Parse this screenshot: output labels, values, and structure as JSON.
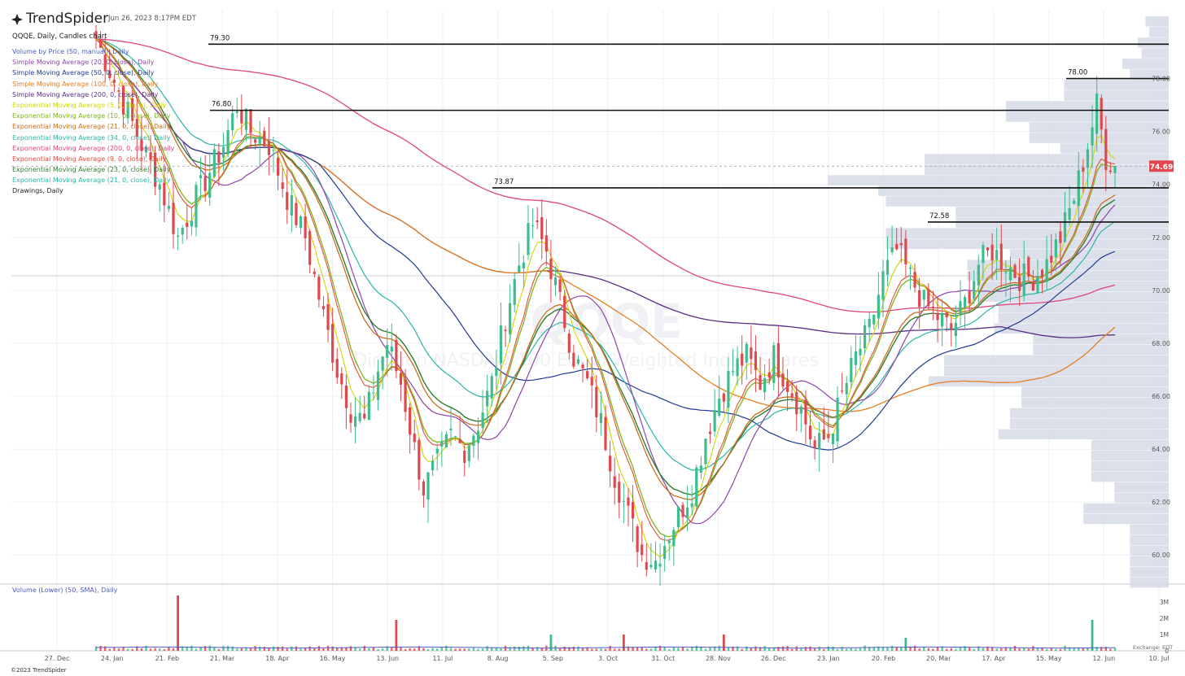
{
  "app": {
    "brand": "TrendSpider",
    "timestamp": "Jun 26, 2023 8:17PM EDT",
    "copyright": "©2023 TrendSpider",
    "exchange_label": "Exchange: EDT"
  },
  "panel": {
    "title": "QQQE, Daily, Candles chart",
    "indicators": [
      {
        "label": "Volume by Price (50, manual), Daily",
        "color": "#4e5cc2"
      },
      {
        "label": "Simple Moving Average (20, 0, close), Daily",
        "color": "#8e44ad"
      },
      {
        "label": "Simple Moving Average (50, 0, close), Daily",
        "color": "#1f3a93"
      },
      {
        "label": "Simple Moving Average (100, 0, close), Daily",
        "color": "#e67e22"
      },
      {
        "label": "Simple Moving Average (200, 0, close), Daily",
        "color": "#5b2c83"
      },
      {
        "label": "Exponential Moving Average (5, 0, close), Daily",
        "color": "#d4d400"
      },
      {
        "label": "Exponential Moving Average (10, 0, close), Daily",
        "color": "#7cb518"
      },
      {
        "label": "Exponential Moving Average (21, 0, close), Daily",
        "color": "#ca6f1e"
      },
      {
        "label": "Exponential Moving Average (34, 0, close), Daily",
        "color": "#2bb5a7"
      },
      {
        "label": "Exponential Moving Average (200, 0, close), Daily",
        "color": "#e0457b"
      },
      {
        "label": "Exponential Moving Average (9, 0, close), Daily",
        "color": "#e74c3c"
      },
      {
        "label": "Exponential Moving Average (23, 0, close), Daily",
        "color": "#2e7d32"
      },
      {
        "label": "Exponential Moving Average (21, 0, close), Daily",
        "color": "#2bb5a7"
      },
      {
        "label": "Drawings, Daily",
        "color": "#222222"
      }
    ],
    "watermark_symbol": "QQQE",
    "watermark_name": "Direxion NASDAQ-100 Equal Weighted Index Shares",
    "volume_title": "Volume (Lower) (50, SMA), Daily"
  },
  "chart_data": {
    "type": "candlestick",
    "symbol": "QQQE",
    "ylim": [
      58.9,
      80.6
    ],
    "y_ticks": [
      "60.00",
      "62.00",
      "64.00",
      "66.00",
      "68.00",
      "70.00",
      "72.00",
      "74.00",
      "76.00",
      "78.00"
    ],
    "x_ticks": [
      "27. Dec",
      "24. Jan",
      "21. Feb",
      "21. Mar",
      "18. Apr",
      "16. May",
      "13. Jun",
      "11. Jul",
      "8. Aug",
      "5. Sep",
      "3. Oct",
      "31. Oct",
      "28. Nov",
      "26. Dec",
      "23. Jan",
      "20. Feb",
      "20. Mar",
      "17. Apr",
      "15. May",
      "12. Jun",
      "10. Jul"
    ],
    "last_price": 74.69,
    "last_price_label": "74.69",
    "horizontal_levels": [
      {
        "value": 79.3,
        "label": "79.30",
        "start_tick": "21. Mar"
      },
      {
        "value": 76.8,
        "label": "76.80",
        "start_tick": "21. Feb"
      },
      {
        "value": 73.87,
        "label": "73.87",
        "start_tick": "8. Aug"
      },
      {
        "value": 72.58,
        "label": "72.58",
        "start_tick": "20. Mar"
      },
      {
        "value": 78.0,
        "label": "78.00",
        "start_tick": "15. May"
      }
    ],
    "close_path": [
      [
        0,
        79.5
      ],
      [
        5,
        77.5
      ],
      [
        10,
        75.5
      ],
      [
        14,
        74.0
      ],
      [
        18,
        72.0
      ],
      [
        22,
        73.5
      ],
      [
        25,
        74.5
      ],
      [
        28,
        75.5
      ],
      [
        31,
        77.0
      ],
      [
        34,
        76.0
      ],
      [
        38,
        75.5
      ],
      [
        42,
        73.5
      ],
      [
        46,
        72.0
      ],
      [
        50,
        69.0
      ],
      [
        53,
        67.0
      ],
      [
        56,
        65.5
      ],
      [
        59,
        65.0
      ],
      [
        62,
        67.0
      ],
      [
        64,
        68.0
      ],
      [
        67,
        66.5
      ],
      [
        70,
        64.0
      ],
      [
        72,
        62.5
      ],
      [
        75,
        63.5
      ],
      [
        78,
        64.5
      ],
      [
        81,
        64.0
      ],
      [
        84,
        65.0
      ],
      [
        87,
        66.5
      ],
      [
        90,
        69.0
      ],
      [
        93,
        71.0
      ],
      [
        96,
        72.5
      ],
      [
        99,
        71.5
      ],
      [
        102,
        69.5
      ],
      [
        105,
        67.5
      ],
      [
        108,
        66.5
      ],
      [
        111,
        65.0
      ],
      [
        114,
        63.0
      ],
      [
        117,
        61.5
      ],
      [
        120,
        60.0
      ],
      [
        123,
        59.8
      ],
      [
        125,
        60.5
      ],
      [
        128,
        61.5
      ],
      [
        131,
        62.5
      ],
      [
        134,
        64.5
      ],
      [
        137,
        66.0
      ],
      [
        140,
        67.0
      ],
      [
        143,
        67.5
      ],
      [
        146,
        66.5
      ],
      [
        149,
        67.5
      ],
      [
        152,
        66.5
      ],
      [
        155,
        65.5
      ],
      [
        158,
        64.0
      ],
      [
        161,
        64.5
      ],
      [
        164,
        66.0
      ],
      [
        167,
        67.5
      ],
      [
        170,
        68.5
      ],
      [
        173,
        70.5
      ],
      [
        176,
        71.5
      ],
      [
        179,
        70.5
      ],
      [
        182,
        69.5
      ],
      [
        185,
        69.0
      ],
      [
        188,
        68.5
      ],
      [
        191,
        69.5
      ],
      [
        194,
        71.0
      ],
      [
        197,
        71.5
      ],
      [
        200,
        71.0
      ],
      [
        203,
        70.5
      ],
      [
        206,
        70.5
      ],
      [
        209,
        71.0
      ],
      [
        212,
        72.0
      ],
      [
        215,
        73.5
      ],
      [
        218,
        75.5
      ],
      [
        220,
        77.0
      ],
      [
        222,
        75.0
      ],
      [
        224,
        74.69
      ]
    ],
    "vbp_profile": [
      {
        "price": 80.15,
        "width": 0.06
      },
      {
        "price": 79.75,
        "width": 0.05
      },
      {
        "price": 79.35,
        "width": 0.08
      },
      {
        "price": 78.95,
        "width": 0.07
      },
      {
        "price": 78.55,
        "width": 0.12
      },
      {
        "price": 78.15,
        "width": 0.1
      },
      {
        "price": 77.75,
        "width": 0.27
      },
      {
        "price": 77.35,
        "width": 0.27
      },
      {
        "price": 76.95,
        "width": 0.42
      },
      {
        "price": 76.55,
        "width": 0.42
      },
      {
        "price": 76.15,
        "width": 0.36
      },
      {
        "price": 75.75,
        "width": 0.36
      },
      {
        "price": 75.35,
        "width": 0.28
      },
      {
        "price": 74.95,
        "width": 0.63
      },
      {
        "price": 74.55,
        "width": 0.63
      },
      {
        "price": 74.15,
        "width": 0.88
      },
      {
        "price": 73.75,
        "width": 0.75
      },
      {
        "price": 73.35,
        "width": 0.73
      },
      {
        "price": 72.95,
        "width": 0.55
      },
      {
        "price": 72.55,
        "width": 0.55
      },
      {
        "price": 72.15,
        "width": 0.73
      },
      {
        "price": 71.75,
        "width": 0.73
      },
      {
        "price": 71.35,
        "width": 0.41
      },
      {
        "price": 70.95,
        "width": 0.52
      },
      {
        "price": 70.55,
        "width": 0.52
      },
      {
        "price": 70.15,
        "width": 0.49
      },
      {
        "price": 69.75,
        "width": 0.49
      },
      {
        "price": 69.35,
        "width": 0.44
      },
      {
        "price": 68.95,
        "width": 0.44
      },
      {
        "price": 68.55,
        "width": 0.45
      },
      {
        "price": 68.15,
        "width": 0.35
      },
      {
        "price": 67.75,
        "width": 0.35
      },
      {
        "price": 67.35,
        "width": 0.58
      },
      {
        "price": 66.95,
        "width": 0.58
      },
      {
        "price": 66.55,
        "width": 0.62
      },
      {
        "price": 66.15,
        "width": 0.38
      },
      {
        "price": 65.75,
        "width": 0.38
      },
      {
        "price": 65.35,
        "width": 0.41
      },
      {
        "price": 64.95,
        "width": 0.41
      },
      {
        "price": 64.55,
        "width": 0.44
      },
      {
        "price": 64.15,
        "width": 0.2
      },
      {
        "price": 63.75,
        "width": 0.2
      },
      {
        "price": 63.35,
        "width": 0.2
      },
      {
        "price": 62.95,
        "width": 0.2
      },
      {
        "price": 62.55,
        "width": 0.14
      },
      {
        "price": 62.15,
        "width": 0.14
      },
      {
        "price": 61.75,
        "width": 0.22
      },
      {
        "price": 61.35,
        "width": 0.22
      },
      {
        "price": 60.95,
        "width": 0.1
      },
      {
        "price": 60.55,
        "width": 0.1
      },
      {
        "price": 60.15,
        "width": 0.1
      },
      {
        "price": 59.75,
        "width": 0.1
      },
      {
        "price": 59.35,
        "width": 0.1
      },
      {
        "price": 58.95,
        "width": 0.1
      }
    ],
    "volume_axis_ticks": [
      "3M",
      "2M",
      "1M",
      "0"
    ],
    "volume_spikes": [
      {
        "bar": 18,
        "value": 3.4,
        "color": "red"
      },
      {
        "bar": 66,
        "value": 1.9,
        "color": "red"
      },
      {
        "bar": 116,
        "value": 1.0,
        "color": "red"
      },
      {
        "bar": 138,
        "value": 1.0,
        "color": "red"
      },
      {
        "bar": 100,
        "value": 1.0,
        "color": "green"
      },
      {
        "bar": 178,
        "value": 0.8,
        "color": "green"
      },
      {
        "bar": 219,
        "value": 1.9,
        "color": "green"
      }
    ]
  },
  "colors": {
    "up": "#3dbd8d",
    "down": "#e0484e",
    "vbp": "#d6dbe6",
    "grid": "#eef0f4",
    "level": "#111111",
    "price_tag": "#e0484e"
  }
}
